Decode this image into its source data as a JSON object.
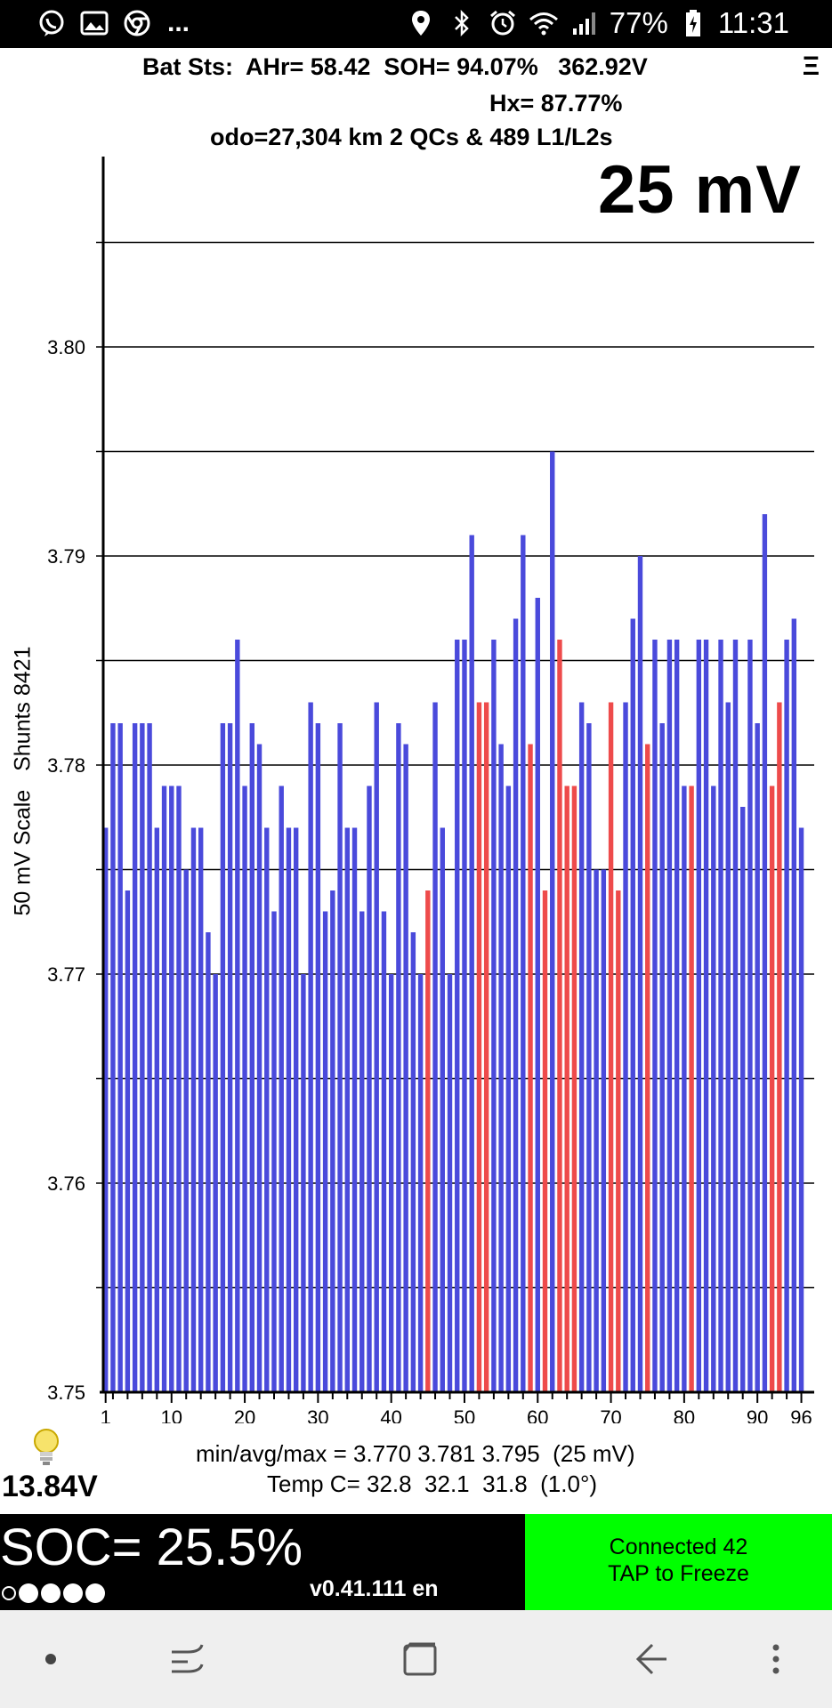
{
  "status_bar": {
    "left_icons": [
      "viber-icon",
      "gallery-icon",
      "chrome-icon"
    ],
    "overflow": "...",
    "battery_percent": "77%",
    "time": "11:31"
  },
  "header": {
    "line1": "Bat Sts:  AHr= 58.42  SOH= 94.07%   362.92V",
    "menu": "Ξ",
    "line2": "Hx= 87.77%",
    "line3": "odo=27,304 km 2 QCs & 489 L1/L2s"
  },
  "scale_label": "25 mV",
  "y_axis_title": "50 mV Scale   Shunts 8421",
  "chart_data": {
    "type": "bar",
    "title": "",
    "xlabel": "",
    "ylabel": "50 mV Scale   Shunts 8421",
    "ylim": [
      3.75,
      3.8085
    ],
    "yticks": [
      3.75,
      3.76,
      3.77,
      3.78,
      3.79,
      3.8
    ],
    "ytick_labels": [
      "3.75",
      "3.76",
      "3.77",
      "3.78",
      "3.79",
      "3.80"
    ],
    "gridlines": [
      3.755,
      3.76,
      3.765,
      3.77,
      3.775,
      3.78,
      3.785,
      3.79,
      3.795,
      3.8,
      3.805
    ],
    "xticks": [
      1,
      10,
      20,
      30,
      40,
      50,
      60,
      70,
      80,
      90,
      96
    ],
    "xtick_labels": [
      "1",
      "10",
      "20",
      "30",
      "40",
      "50",
      "60",
      "70",
      "80",
      "90",
      "96"
    ],
    "colors": {
      "normal": "#4a4adb",
      "shunted": "#ee4b4b"
    },
    "cells": [
      1,
      2,
      3,
      4,
      5,
      6,
      7,
      8,
      9,
      10,
      11,
      12,
      13,
      14,
      15,
      16,
      17,
      18,
      19,
      20,
      21,
      22,
      23,
      24,
      25,
      26,
      27,
      28,
      29,
      30,
      31,
      32,
      33,
      34,
      35,
      36,
      37,
      38,
      39,
      40,
      41,
      42,
      43,
      44,
      45,
      46,
      47,
      48,
      49,
      50,
      51,
      52,
      53,
      54,
      55,
      56,
      57,
      58,
      59,
      60,
      61,
      62,
      63,
      64,
      65,
      66,
      67,
      68,
      69,
      70,
      71,
      72,
      73,
      74,
      75,
      76,
      77,
      78,
      79,
      80,
      81,
      82,
      83,
      84,
      85,
      86,
      87,
      88,
      89,
      90,
      91,
      92,
      93,
      94,
      95,
      96
    ],
    "values": [
      3.777,
      3.782,
      3.782,
      3.774,
      3.782,
      3.782,
      3.782,
      3.777,
      3.779,
      3.779,
      3.779,
      3.775,
      3.777,
      3.777,
      3.772,
      3.77,
      3.782,
      3.782,
      3.786,
      3.779,
      3.782,
      3.781,
      3.777,
      3.773,
      3.779,
      3.777,
      3.777,
      3.77,
      3.783,
      3.782,
      3.773,
      3.774,
      3.782,
      3.777,
      3.777,
      3.773,
      3.779,
      3.783,
      3.773,
      3.77,
      3.782,
      3.781,
      3.772,
      3.77,
      3.774,
      3.783,
      3.777,
      3.77,
      3.786,
      3.786,
      3.791,
      3.783,
      3.783,
      3.786,
      3.781,
      3.779,
      3.787,
      3.791,
      3.781,
      3.788,
      3.774,
      3.795,
      3.786,
      3.779,
      3.779,
      3.783,
      3.782,
      3.775,
      3.775,
      3.783,
      3.774,
      3.783,
      3.787,
      3.79,
      3.781,
      3.786,
      3.782,
      3.786,
      3.786,
      3.779,
      3.779,
      3.786,
      3.786,
      3.779,
      3.786,
      3.783,
      3.786,
      3.778,
      3.786,
      3.782,
      3.792,
      3.779,
      3.783,
      3.786,
      3.787,
      3.777
    ],
    "shunted": [
      45,
      52,
      53,
      59,
      61,
      63,
      64,
      65,
      70,
      71,
      75,
      81,
      92,
      93
    ]
  },
  "stats": {
    "line": "min/avg/max = 3.770 3.781 3.795  (25 mV)",
    "temp": "Temp C= 32.8  32.1  31.8  (1.0°)",
    "aux_voltage": "13.84V"
  },
  "soc_panel": {
    "soc": "SOC= 25.5%",
    "version": "v0.41.111 en",
    "dots_filled": 4,
    "dots_total": 5
  },
  "connect_panel": {
    "line1": "Connected 42",
    "line2": "TAP to Freeze",
    "color": "#00ff00"
  },
  "nav_bar": {
    "items": [
      "dot-icon",
      "recents-icon",
      "home-icon",
      "back-icon",
      "more-icon"
    ]
  }
}
